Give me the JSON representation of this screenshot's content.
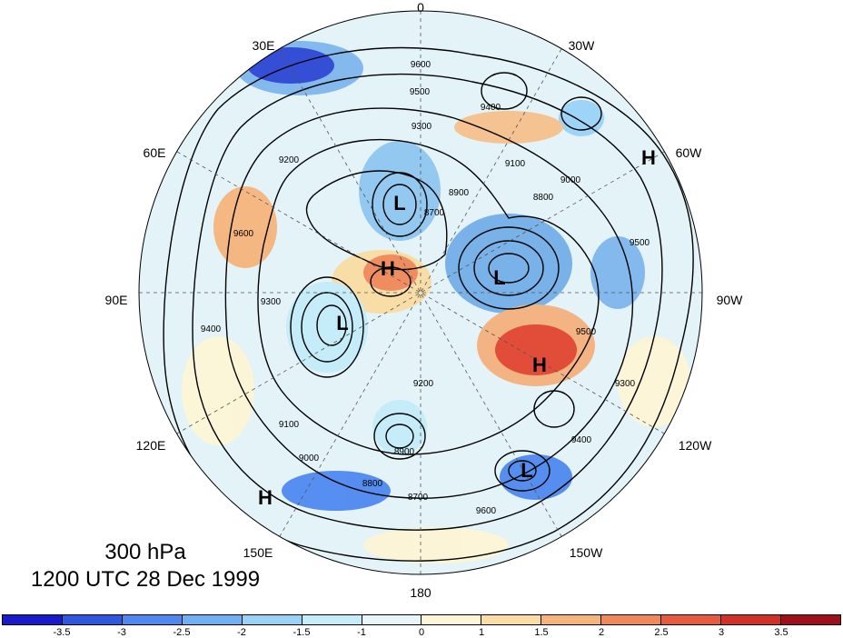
{
  "map": {
    "level_label": "300 hPa",
    "time_label": "1200 UTC 28 Dec 1999",
    "longitude_labels": [
      "0",
      "30W",
      "60W",
      "90W",
      "120W",
      "150W",
      "180",
      "150E",
      "120E",
      "90E",
      "60E",
      "30E"
    ],
    "pressure_centers": [
      "H",
      "L",
      "H",
      "L",
      "L",
      "H",
      "L",
      "H"
    ],
    "contour_labels": [
      "9600",
      "9500",
      "9400",
      "9300",
      "9200",
      "9100",
      "9000",
      "8900",
      "8800",
      "8700"
    ],
    "colorbar": {
      "tick_labels": [
        "-3.5",
        "-3",
        "-2.5",
        "-2",
        "-1.5",
        "-1",
        "0",
        "1",
        "1.5",
        "2",
        "2.5",
        "3",
        "3.5"
      ],
      "colors": [
        "#1a1acd",
        "#2f58e0",
        "#4f88f0",
        "#6fb0f5",
        "#9ad2f7",
        "#c4ecfa",
        "#e6f6fb",
        "#fdf5d6",
        "#fbdca2",
        "#f6b47b",
        "#f08858",
        "#e65b3e",
        "#d33028",
        "#a0101a"
      ]
    }
  }
}
